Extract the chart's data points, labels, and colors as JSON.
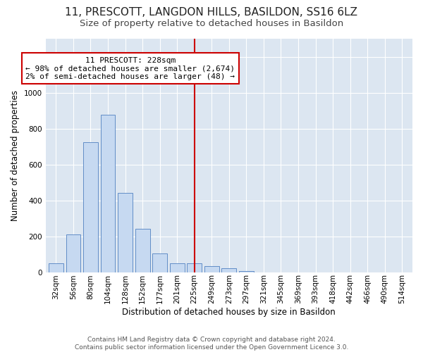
{
  "title": "11, PRESCOTT, LANGDON HILLS, BASILDON, SS16 6LZ",
  "subtitle": "Size of property relative to detached houses in Basildon",
  "xlabel": "Distribution of detached houses by size in Basildon",
  "ylabel": "Number of detached properties",
  "footer_line1": "Contains HM Land Registry data © Crown copyright and database right 2024.",
  "footer_line2": "Contains public sector information licensed under the Open Government Licence 3.0.",
  "annotation_title": "11 PRESCOTT: 228sqm",
  "annotation_line1": "← 98% of detached houses are smaller (2,674)",
  "annotation_line2": "2% of semi-detached houses are larger (48) →",
  "marker_bin_index": 8,
  "bar_categories": [
    "32sqm",
    "56sqm",
    "80sqm",
    "104sqm",
    "128sqm",
    "152sqm",
    "177sqm",
    "201sqm",
    "225sqm",
    "249sqm",
    "273sqm",
    "297sqm",
    "321sqm",
    "345sqm",
    "369sqm",
    "393sqm",
    "418sqm",
    "442sqm",
    "466sqm",
    "490sqm",
    "514sqm"
  ],
  "bar_heights": [
    50,
    210,
    725,
    875,
    440,
    240,
    105,
    50,
    50,
    35,
    20,
    5,
    0,
    0,
    0,
    0,
    0,
    0,
    0,
    0,
    0
  ],
  "bar_color": "#c6d9f1",
  "bar_edge_color": "#5080c0",
  "marker_line_color": "#cc0000",
  "annotation_box_edge": "#cc0000",
  "background_color": "#dce6f1",
  "ylim": [
    0,
    1300
  ],
  "yticks": [
    0,
    200,
    400,
    600,
    800,
    1000,
    1200
  ],
  "title_fontsize": 11,
  "subtitle_fontsize": 9.5,
  "axis_label_fontsize": 8.5,
  "tick_fontsize": 7.5,
  "annotation_fontsize": 8,
  "footer_fontsize": 6.5
}
